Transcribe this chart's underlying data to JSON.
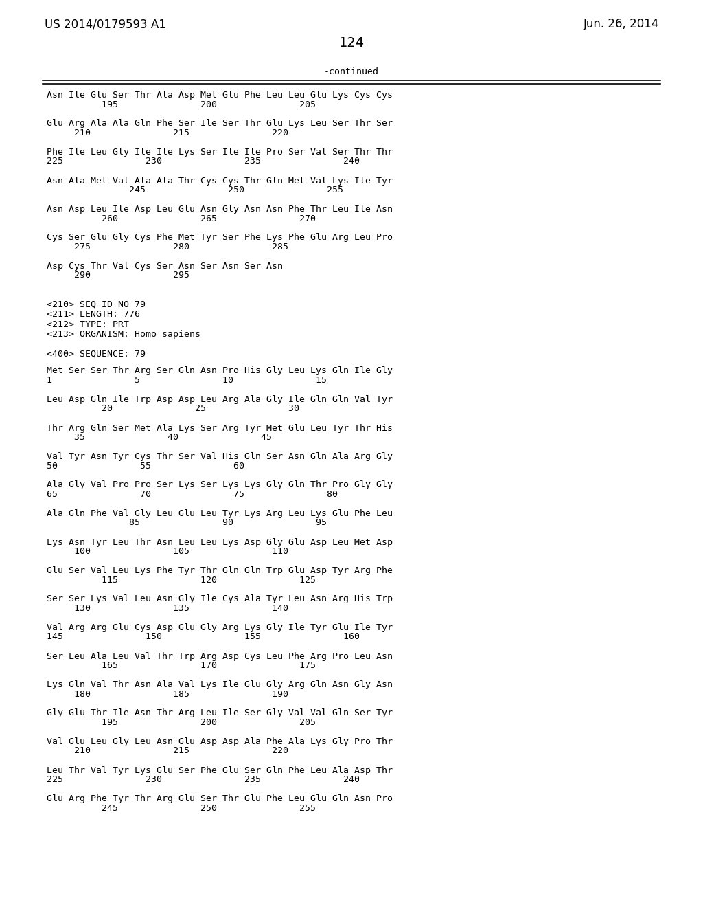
{
  "header_left": "US 2014/0179593 A1",
  "header_right": "Jun. 26, 2014",
  "page_number": "124",
  "continued_label": "-continued",
  "background_color": "#ffffff",
  "text_color": "#000000",
  "top_section": [
    [
      "Asn Ile Glu Ser Thr Ala Asp Met Glu Phe Leu Leu Glu Lys Cys Cys",
      "          195               200               205"
    ],
    [
      "Glu Arg Ala Ala Gln Phe Ser Ile Ser Thr Glu Lys Leu Ser Thr Ser",
      "     210               215               220"
    ],
    [
      "Phe Ile Leu Gly Ile Ile Lys Ser Ile Ile Pro Ser Val Ser Thr Thr",
      "225               230               235               240"
    ],
    [
      "Asn Ala Met Val Ala Ala Thr Cys Cys Thr Gln Met Val Lys Ile Tyr",
      "               245               250               255"
    ],
    [
      "Asn Asp Leu Ile Asp Leu Glu Asn Gly Asn Asn Phe Thr Leu Ile Asn",
      "          260               265               270"
    ],
    [
      "Cys Ser Glu Gly Cys Phe Met Tyr Ser Phe Lys Phe Glu Arg Leu Pro",
      "     275               280               285"
    ],
    [
      "Asp Cys Thr Val Cys Ser Asn Ser Asn Ser Asn",
      "     290               295"
    ]
  ],
  "metadata_lines": [
    "<210> SEQ ID NO 79",
    "<211> LENGTH: 776",
    "<212> TYPE: PRT",
    "<213> ORGANISM: Homo sapiens",
    "",
    "<400> SEQUENCE: 79"
  ],
  "bottom_section": [
    [
      "Met Ser Ser Thr Arg Ser Gln Asn Pro His Gly Leu Lys Gln Ile Gly",
      "1               5               10               15"
    ],
    [
      "Leu Asp Gln Ile Trp Asp Asp Leu Arg Ala Gly Ile Gln Gln Val Tyr",
      "          20               25               30"
    ],
    [
      "Thr Arg Gln Ser Met Ala Lys Ser Arg Tyr Met Glu Leu Tyr Thr His",
      "     35               40               45"
    ],
    [
      "Val Tyr Asn Tyr Cys Thr Ser Val His Gln Ser Asn Gln Ala Arg Gly",
      "50               55               60"
    ],
    [
      "Ala Gly Val Pro Pro Ser Lys Ser Lys Lys Gly Gln Thr Pro Gly Gly",
      "65               70               75               80"
    ],
    [
      "Ala Gln Phe Val Gly Leu Glu Leu Tyr Lys Arg Leu Lys Glu Phe Leu",
      "               85               90               95"
    ],
    [
      "Lys Asn Tyr Leu Thr Asn Leu Leu Lys Asp Gly Glu Asp Leu Met Asp",
      "     100               105               110"
    ],
    [
      "Glu Ser Val Leu Lys Phe Tyr Thr Gln Gln Trp Glu Asp Tyr Arg Phe",
      "          115               120               125"
    ],
    [
      "Ser Ser Lys Val Leu Asn Gly Ile Cys Ala Tyr Leu Asn Arg His Trp",
      "     130               135               140"
    ],
    [
      "Val Arg Arg Glu Cys Asp Glu Gly Arg Lys Gly Ile Tyr Glu Ile Tyr",
      "145               150               155               160"
    ],
    [
      "Ser Leu Ala Leu Val Thr Trp Arg Asp Cys Leu Phe Arg Pro Leu Asn",
      "          165               170               175"
    ],
    [
      "Lys Gln Val Thr Asn Ala Val Lys Ile Glu Gly Arg Gln Asn Gly Asn",
      "     180               185               190"
    ],
    [
      "Gly Glu Thr Ile Asn Thr Arg Leu Ile Ser Gly Val Val Gln Ser Tyr",
      "          195               200               205"
    ],
    [
      "Val Glu Leu Gly Leu Asn Glu Asp Asp Ala Phe Ala Lys Gly Pro Thr",
      "     210               215               220"
    ],
    [
      "Leu Thr Val Tyr Lys Glu Ser Phe Glu Ser Gln Phe Leu Ala Asp Thr",
      "225               230               235               240"
    ],
    [
      "Glu Arg Phe Tyr Thr Arg Glu Ser Thr Glu Phe Leu Glu Gln Asn Pro",
      "          245               250               255"
    ]
  ]
}
